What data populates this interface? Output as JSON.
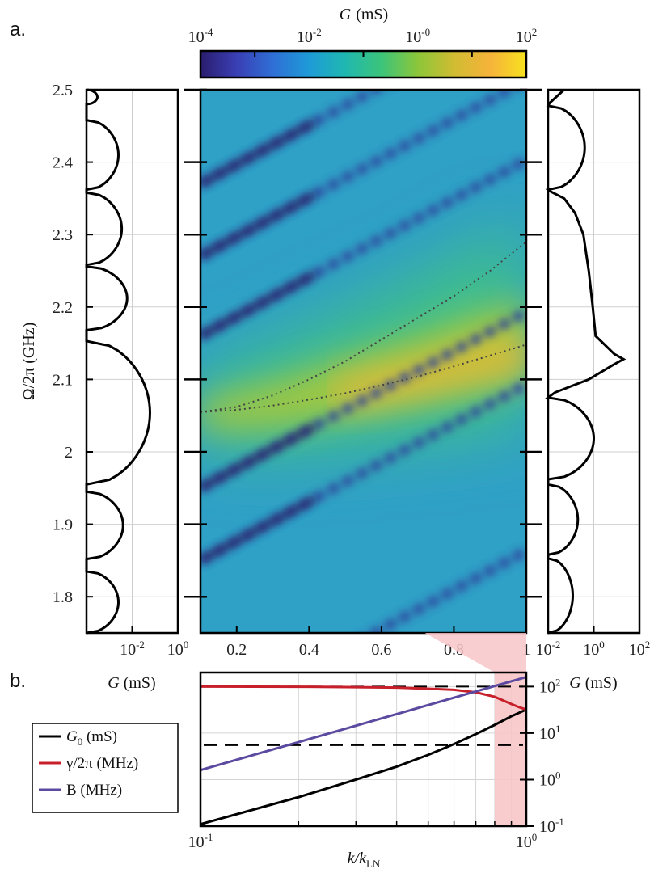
{
  "panels": {
    "a": "a.",
    "b": "b."
  },
  "chart_data": [
    {
      "id": "a-heatmap",
      "type": "heatmap",
      "colorbar": {
        "label_prefix": "G",
        "label_unit": "(mS)",
        "scale": "log",
        "range": [
          0.0001,
          100
        ],
        "ticks": [
          {
            "base": "10",
            "exp": "-4"
          },
          {
            "base": "10",
            "exp": "-2"
          },
          {
            "base": "10",
            "exp": "-0"
          },
          {
            "base": "10",
            "exp": "2"
          }
        ]
      },
      "xlim": [
        0.1,
        1
      ],
      "ylim": [
        1.75,
        2.5
      ],
      "x_ticks": [
        "0.2",
        "0.4",
        "0.6",
        "0.8",
        "1"
      ],
      "y_ticks": [
        "1.8",
        "1.9",
        "2",
        "2.1",
        "2.2",
        "2.3",
        "2.4",
        "2.5"
      ],
      "y_label": "Ω/2π (GHz)",
      "ridge": {
        "x": [
          0.1,
          0.3,
          0.5,
          0.7,
          0.9,
          1.0
        ],
        "y": [
          2.05,
          2.06,
          2.08,
          2.1,
          2.125,
          2.135
        ]
      },
      "dark_bands_intercept_y": [
        1.85,
        1.95,
        2.16,
        2.27,
        2.37,
        1.62,
        1.45
      ],
      "dotted_curves": [
        {
          "x": [
            0.1,
            0.2,
            0.3,
            0.4,
            0.5,
            0.6,
            0.7,
            0.8,
            0.9,
            1.0
          ],
          "y": [
            2.055,
            2.062,
            2.078,
            2.1,
            2.125,
            2.155,
            2.185,
            2.215,
            2.25,
            2.29
          ]
        },
        {
          "x": [
            0.1,
            0.2,
            0.3,
            0.4,
            0.5,
            0.6,
            0.7,
            0.8,
            0.9,
            1.0
          ],
          "y": [
            2.055,
            2.058,
            2.064,
            2.072,
            2.081,
            2.092,
            2.104,
            2.118,
            2.133,
            2.148
          ]
        }
      ]
    },
    {
      "id": "a-left-cut",
      "type": "line",
      "x_label": "G (mS)",
      "x_scale": "log",
      "xlim": [
        0.0001,
        1
      ],
      "x_ticks": [
        {
          "base": "10",
          "exp": "-2"
        },
        {
          "base": "10",
          "exp": "0"
        }
      ],
      "ylim": [
        1.75,
        2.5
      ],
      "lobes": [
        [
          1.75,
          1.835,
          0.0025
        ],
        [
          1.852,
          1.945,
          0.004
        ],
        [
          1.955,
          2.153,
          0.06
        ],
        [
          2.168,
          2.256,
          0.006
        ],
        [
          2.258,
          2.358,
          0.0035
        ],
        [
          2.362,
          2.458,
          0.0025
        ],
        [
          2.48,
          2.5,
          0.0003
        ]
      ]
    },
    {
      "id": "a-right-cut",
      "type": "line",
      "x_label": "G (mS)",
      "x_scale": "log",
      "xlim": [
        0.01,
        100
      ],
      "x_ticks": [
        {
          "base": "10",
          "exp": "-2"
        },
        {
          "base": "10",
          "exp": "0"
        },
        {
          "base": "10",
          "exp": "2"
        }
      ],
      "ylim": [
        1.75,
        2.5
      ],
      "lobes": [
        [
          1.75,
          1.853,
          0.12
        ],
        [
          1.858,
          1.955,
          0.2
        ],
        [
          1.962,
          2.075,
          1.0
        ]
      ],
      "peak_curve": {
        "y": [
          2.082,
          2.1,
          2.12,
          2.128,
          2.135,
          2.16,
          2.2,
          2.25,
          2.3,
          2.33,
          2.35,
          2.36
        ],
        "x": [
          0.02,
          0.6,
          7,
          20,
          8,
          1.2,
          0.9,
          0.6,
          0.35,
          0.15,
          0.05,
          0.012
        ]
      },
      "upper_lobes": [
        [
          2.362,
          2.478,
          0.4
        ]
      ],
      "tail": {
        "y": [
          2.482,
          2.5
        ],
        "x": [
          0.012,
          0.05
        ]
      }
    },
    {
      "id": "b-lines",
      "type": "line",
      "x_label_main": "k/k",
      "x_label_sub": "LN",
      "x_scale": "log",
      "xlim": [
        0.1,
        1
      ],
      "x_ticks": [
        {
          "base": "10",
          "exp": "-1"
        },
        {
          "base": "10",
          "exp": "0"
        }
      ],
      "y_scale": "log",
      "ylim": [
        0.1,
        200
      ],
      "y_ticks": [
        {
          "base": "10",
          "exp": "-1"
        },
        {
          "base": "10",
          "exp": "0"
        },
        {
          "base": "10",
          "exp": "1"
        },
        {
          "base": "10",
          "exp": "2"
        }
      ],
      "series": [
        {
          "name": "G",
          "name_sub": "0",
          "name_rest": " (mS)",
          "color": "#000000",
          "x": [
            0.1,
            0.2,
            0.3,
            0.4,
            0.5,
            0.6,
            0.7,
            0.8,
            0.9,
            1.0
          ],
          "y": [
            0.11,
            0.42,
            1.0,
            1.9,
            3.4,
            5.8,
            9.5,
            15,
            23,
            32
          ]
        },
        {
          "name": "γ/2π (MHz)",
          "color": "#c8202a",
          "x": [
            0.1,
            0.2,
            0.3,
            0.4,
            0.5,
            0.6,
            0.7,
            0.8,
            0.85,
            0.9,
            0.95,
            1.0
          ],
          "y": [
            100,
            99,
            97,
            95,
            90,
            85,
            75,
            60,
            50,
            42,
            36,
            32
          ]
        },
        {
          "name": "B (MHz)",
          "color": "#5b4aa0",
          "x": [
            0.1,
            1.0
          ],
          "y": [
            1.6,
            160
          ]
        }
      ],
      "hlines": [
        100,
        5.5
      ],
      "shade_x": [
        0.8,
        1.0
      ]
    }
  ]
}
